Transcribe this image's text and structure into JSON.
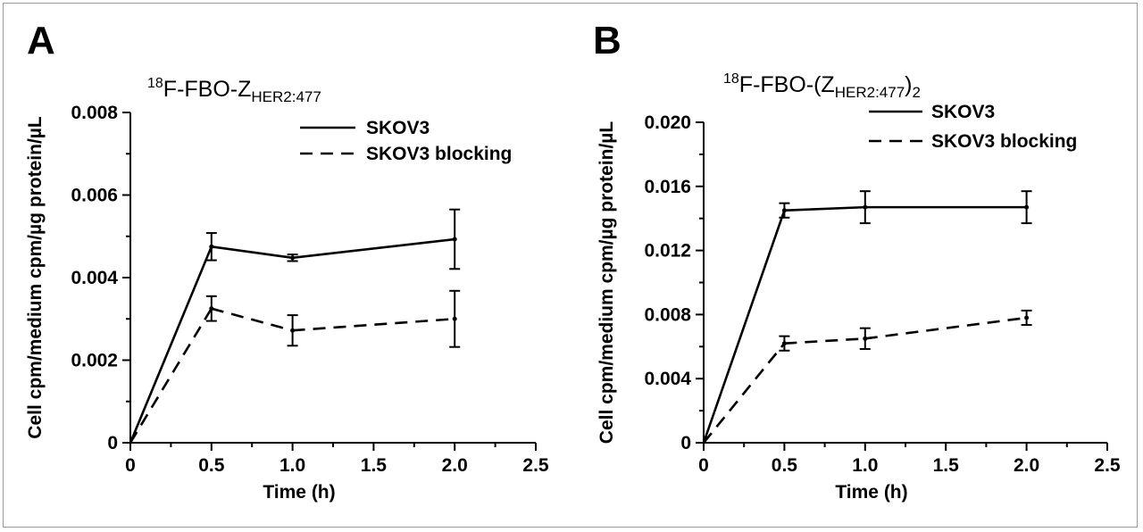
{
  "chart_data": [
    {
      "type": "line",
      "panel": "A",
      "title": {
        "sup": "18",
        "main": "F-FBO-Z",
        "sub": "HER2:477",
        "tail": ""
      },
      "xlabel": "Time (h)",
      "ylabel": "Cell cpm/medium cpm/µg protein/µL",
      "xlim": [
        0,
        2.5
      ],
      "ylim": [
        0,
        0.008
      ],
      "xticks": [
        0,
        0.5,
        1.0,
        1.5,
        2.0,
        2.5
      ],
      "xtick_labels": [
        "0",
        "0.5",
        "1.0",
        "1.5",
        "2.0",
        "2.5"
      ],
      "yticks": [
        0,
        0.002,
        0.004,
        0.006,
        0.008
      ],
      "ytick_labels": [
        "0",
        "0.002",
        "0.004",
        "0.006",
        "0.008"
      ],
      "legend_position": "top-right",
      "series": [
        {
          "name": "SKOV3",
          "style": "solid",
          "x": [
            0,
            0.5,
            1.0,
            2.0
          ],
          "y": [
            0,
            0.00475,
            0.00448,
            0.00493
          ],
          "err": [
            0,
            0.00033,
            8e-05,
            0.00072
          ]
        },
        {
          "name": "SKOV3 blocking",
          "style": "dashed",
          "x": [
            0,
            0.5,
            1.0,
            2.0
          ],
          "y": [
            0,
            0.00325,
            0.00272,
            0.003
          ],
          "err": [
            0,
            0.0003,
            0.00037,
            0.00068
          ]
        }
      ]
    },
    {
      "type": "line",
      "panel": "B",
      "title": {
        "sup": "18",
        "main": "F-FBO-(Z",
        "sub": "HER2:477",
        "tail": ")",
        "tail_sub": "2"
      },
      "xlabel": "Time (h)",
      "ylabel": "Cell cpm/medium cpm/µg protein/µL",
      "xlim": [
        0,
        2.5
      ],
      "ylim": [
        0,
        0.02
      ],
      "xticks": [
        0,
        0.5,
        1.0,
        1.5,
        2.0,
        2.5
      ],
      "xtick_labels": [
        "0",
        "0.5",
        "1.0",
        "1.5",
        "2.0",
        "2.5"
      ],
      "yticks": [
        0,
        0.004,
        0.008,
        0.012,
        0.016,
        0.02
      ],
      "ytick_labels": [
        "0",
        "0.004",
        "0.008",
        "0.012",
        "0.016",
        "0.020"
      ],
      "legend_position": "top-right",
      "series": [
        {
          "name": "SKOV3",
          "style": "solid",
          "x": [
            0,
            0.5,
            1.0,
            2.0
          ],
          "y": [
            0,
            0.0145,
            0.0147,
            0.0147
          ],
          "err": [
            0,
            0.00045,
            0.001,
            0.001
          ]
        },
        {
          "name": "SKOV3 blocking",
          "style": "dashed",
          "x": [
            0,
            0.5,
            1.0,
            2.0
          ],
          "y": [
            0,
            0.0062,
            0.0065,
            0.0078
          ],
          "err": [
            0,
            0.00045,
            0.00065,
            0.00045
          ]
        }
      ]
    }
  ],
  "colors": {
    "ink": "#000000",
    "background": "#ffffff",
    "frame": "#9a9a9a"
  }
}
